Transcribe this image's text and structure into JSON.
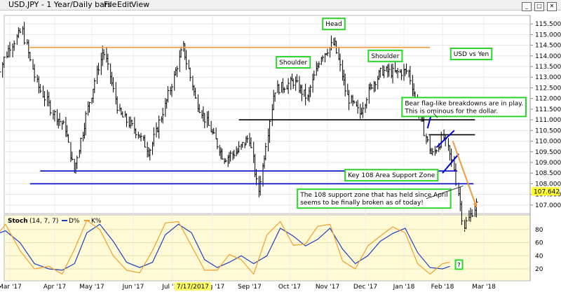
{
  "window": {
    "title": "USD.JPY - 1 Year/Daily bars",
    "menu": [
      "File",
      "Edit",
      "View"
    ]
  },
  "colors": {
    "bars": "#000000",
    "resistance_line": "#f39a3c",
    "support_line": "#0000cc",
    "neckline": "#000000",
    "forecast_arrow": "#f39a3c",
    "label_border": "#2bd62b",
    "stoch_panel_bg": "#fffbd6",
    "d_line": "#1f3fbf",
    "k_line": "#f0a030",
    "last_price_bg": "#ffff33"
  },
  "chart_data": [
    {
      "type": "ohlc",
      "title": "",
      "label_box": "USD vs Yen",
      "ylim": [
        106.6,
        115.9
      ],
      "yticks": [
        107.0,
        107.5,
        108.0,
        108.5,
        109.0,
        109.5,
        110.0,
        110.5,
        111.0,
        111.5,
        112.0,
        112.5,
        113.0,
        113.5,
        114.0,
        114.5,
        115.0,
        115.5
      ],
      "ytick_labels": [
        "107.000",
        "107.500",
        "108.000",
        "108.500",
        "109.000",
        "109.500",
        "110.000",
        "110.500",
        "111.000",
        "111.500",
        "112.000",
        "112.500",
        "113.000",
        "113.500",
        "114.000",
        "114.500",
        "115.000",
        "115.500"
      ],
      "last_price": "107.642",
      "xtick_labels": [
        "Mar '17",
        "Apr '17",
        "May '17",
        "Jun '17",
        "Jul '17",
        "Aug '17",
        "Sep '17",
        "Oct '17",
        "Nov '17",
        "Dec '17",
        "Jan '18",
        "Feb '18",
        "Mar '18"
      ],
      "date_marker": "7/17/2017",
      "close_path": [
        {
          "date": "2017-02-20",
          "close": 113.0
        },
        {
          "date": "2017-03-01",
          "close": 114.4
        },
        {
          "date": "2017-03-10",
          "close": 115.2
        },
        {
          "date": "2017-03-20",
          "close": 112.7
        },
        {
          "date": "2017-03-31",
          "close": 111.4
        },
        {
          "date": "2017-04-10",
          "close": 110.6
        },
        {
          "date": "2017-04-17",
          "close": 108.6
        },
        {
          "date": "2017-04-28",
          "close": 111.5
        },
        {
          "date": "2017-05-10",
          "close": 114.3
        },
        {
          "date": "2017-05-22",
          "close": 111.3
        },
        {
          "date": "2017-06-05",
          "close": 110.4
        },
        {
          "date": "2017-06-14",
          "close": 109.5
        },
        {
          "date": "2017-06-28",
          "close": 112.0
        },
        {
          "date": "2017-07-10",
          "close": 114.4
        },
        {
          "date": "2017-07-20",
          "close": 111.9
        },
        {
          "date": "2017-08-01",
          "close": 110.4
        },
        {
          "date": "2017-08-11",
          "close": 109.2
        },
        {
          "date": "2017-08-22",
          "close": 109.5
        },
        {
          "date": "2017-09-01",
          "close": 110.2
        },
        {
          "date": "2017-09-08",
          "close": 107.6
        },
        {
          "date": "2017-09-20",
          "close": 112.4
        },
        {
          "date": "2017-10-05",
          "close": 112.8
        },
        {
          "date": "2017-10-16",
          "close": 112.0
        },
        {
          "date": "2017-10-27",
          "close": 114.0
        },
        {
          "date": "2017-11-07",
          "close": 114.6
        },
        {
          "date": "2017-11-17",
          "close": 112.1
        },
        {
          "date": "2017-11-27",
          "close": 111.3
        },
        {
          "date": "2017-12-06",
          "close": 112.6
        },
        {
          "date": "2017-12-15",
          "close": 113.3
        },
        {
          "date": "2017-12-26",
          "close": 113.2
        },
        {
          "date": "2018-01-05",
          "close": 113.3
        },
        {
          "date": "2018-01-15",
          "close": 111.0
        },
        {
          "date": "2018-01-24",
          "close": 109.3
        },
        {
          "date": "2018-02-02",
          "close": 110.2
        },
        {
          "date": "2018-02-09",
          "close": 108.8
        },
        {
          "date": "2018-02-16",
          "close": 106.0
        },
        {
          "date": "2018-02-26",
          "close": 107.2
        }
      ],
      "lines": [
        {
          "role": "resistance",
          "from": {
            "date": "2017-03-14",
            "value": 114.4
          },
          "to": {
            "date": "2018-01-22",
            "value": 114.4
          }
        },
        {
          "role": "neckline",
          "from": {
            "date": "2017-08-23",
            "value": 111.0
          },
          "to": {
            "date": "2018-02-23",
            "value": 111.0
          }
        },
        {
          "role": "neckline",
          "from": {
            "date": "2018-01-21",
            "value": 110.3
          },
          "to": {
            "date": "2018-02-23",
            "value": 110.3
          }
        },
        {
          "role": "support",
          "from": {
            "date": "2017-03-22",
            "value": 108.6
          },
          "to": {
            "date": "2018-02-11",
            "value": 108.6
          }
        },
        {
          "role": "support",
          "from": {
            "date": "2017-03-15",
            "value": 108.0
          },
          "to": {
            "date": "2018-02-22",
            "value": 108.0
          }
        }
      ],
      "flags": [
        {
          "from": {
            "date": "2018-01-20",
            "value": 110.6
          },
          "to": {
            "date": "2018-01-25",
            "value": 111.7
          }
        },
        {
          "from": {
            "date": "2018-01-27",
            "value": 109.7
          },
          "to": {
            "date": "2018-02-09",
            "value": 110.5
          }
        },
        {
          "from": {
            "date": "2018-02-01",
            "value": 108.5
          },
          "to": {
            "date": "2018-02-12",
            "value": 109.4
          }
        }
      ],
      "forecast_arrow": {
        "from": {
          "date": "2018-02-08",
          "value": 110.0
        },
        "to": {
          "date": "2018-02-24",
          "value": 106.9
        }
      },
      "annotations": [
        {
          "text": "Head",
          "anchor": {
            "date": "2017-11-06",
            "value": 115.5
          }
        },
        {
          "text": "Shoulder",
          "anchor": {
            "date": "2017-10-04",
            "value": 113.7
          }
        },
        {
          "text": "Shoulder",
          "anchor": {
            "date": "2017-12-17",
            "value": 114.0
          }
        },
        {
          "text": "Key 108 Area Support Zone",
          "anchor": {
            "date": "2017-12-22",
            "value": 108.4
          }
        },
        {
          "lines": [
            "Bear flag-like breakdowns are in play.",
            "This is ominous for the dollar."
          ],
          "anchor": {
            "date": "2018-01-27",
            "value": 111.6
          }
        },
        {
          "lines": [
            "The 108 support zone that has held since April",
            "seems to be finally broken as of today!"
          ],
          "anchor": {
            "date": "2017-12-08",
            "value": 107.3
          }
        }
      ]
    },
    {
      "type": "line",
      "title": "Stoch",
      "params": "(14, 7, 7)",
      "legend": [
        {
          "name": "D%",
          "color": "#1f3fbf"
        },
        {
          "name": "K%",
          "color": "#f0a030"
        }
      ],
      "ylim": [
        4,
        100
      ],
      "yticks": [
        20,
        40,
        60,
        80
      ],
      "marker_label": "?",
      "marker_date": "2018-02-06",
      "series": [
        {
          "name": "D%",
          "points": [
            {
              "date": "2017-02-16",
              "value": 70
            },
            {
              "date": "2017-02-26",
              "value": 78
            },
            {
              "date": "2017-03-08",
              "value": 60
            },
            {
              "date": "2017-03-18",
              "value": 28
            },
            {
              "date": "2017-03-28",
              "value": 20
            },
            {
              "date": "2017-04-07",
              "value": 18
            },
            {
              "date": "2017-04-17",
              "value": 28
            },
            {
              "date": "2017-04-27",
              "value": 75
            },
            {
              "date": "2017-05-07",
              "value": 88
            },
            {
              "date": "2017-05-17",
              "value": 62
            },
            {
              "date": "2017-05-27",
              "value": 30
            },
            {
              "date": "2017-06-06",
              "value": 22
            },
            {
              "date": "2017-06-16",
              "value": 30
            },
            {
              "date": "2017-06-26",
              "value": 72
            },
            {
              "date": "2017-07-06",
              "value": 88
            },
            {
              "date": "2017-07-16",
              "value": 75
            },
            {
              "date": "2017-07-26",
              "value": 34
            },
            {
              "date": "2017-08-05",
              "value": 22
            },
            {
              "date": "2017-08-15",
              "value": 30
            },
            {
              "date": "2017-08-25",
              "value": 40
            },
            {
              "date": "2017-09-04",
              "value": 28
            },
            {
              "date": "2017-09-14",
              "value": 40
            },
            {
              "date": "2017-09-24",
              "value": 82
            },
            {
              "date": "2017-10-04",
              "value": 70
            },
            {
              "date": "2017-10-14",
              "value": 55
            },
            {
              "date": "2017-10-24",
              "value": 65
            },
            {
              "date": "2017-11-03",
              "value": 82
            },
            {
              "date": "2017-11-13",
              "value": 50
            },
            {
              "date": "2017-11-23",
              "value": 28
            },
            {
              "date": "2017-12-03",
              "value": 40
            },
            {
              "date": "2017-12-13",
              "value": 62
            },
            {
              "date": "2017-12-23",
              "value": 74
            },
            {
              "date": "2018-01-02",
              "value": 82
            },
            {
              "date": "2018-01-12",
              "value": 45
            },
            {
              "date": "2018-01-22",
              "value": 22
            },
            {
              "date": "2018-02-01",
              "value": 20
            },
            {
              "date": "2018-02-06",
              "value": 24
            }
          ]
        },
        {
          "name": "K%",
          "points": [
            {
              "date": "2017-02-16",
              "value": 60
            },
            {
              "date": "2017-02-26",
              "value": 88
            },
            {
              "date": "2017-03-08",
              "value": 48
            },
            {
              "date": "2017-03-18",
              "value": 20
            },
            {
              "date": "2017-03-28",
              "value": 24
            },
            {
              "date": "2017-04-07",
              "value": 12
            },
            {
              "date": "2017-04-17",
              "value": 50
            },
            {
              "date": "2017-04-27",
              "value": 94
            },
            {
              "date": "2017-05-07",
              "value": 80
            },
            {
              "date": "2017-05-17",
              "value": 40
            },
            {
              "date": "2017-05-27",
              "value": 18
            },
            {
              "date": "2017-06-06",
              "value": 14
            },
            {
              "date": "2017-06-16",
              "value": 48
            },
            {
              "date": "2017-06-26",
              "value": 90
            },
            {
              "date": "2017-07-06",
              "value": 92
            },
            {
              "date": "2017-07-16",
              "value": 55
            },
            {
              "date": "2017-07-26",
              "value": 18
            },
            {
              "date": "2017-08-05",
              "value": 18
            },
            {
              "date": "2017-08-15",
              "value": 42
            },
            {
              "date": "2017-08-25",
              "value": 34
            },
            {
              "date": "2017-09-04",
              "value": 12
            },
            {
              "date": "2017-09-14",
              "value": 72
            },
            {
              "date": "2017-09-24",
              "value": 92
            },
            {
              "date": "2017-10-04",
              "value": 56
            },
            {
              "date": "2017-10-14",
              "value": 58
            },
            {
              "date": "2017-10-24",
              "value": 85
            },
            {
              "date": "2017-11-03",
              "value": 88
            },
            {
              "date": "2017-11-13",
              "value": 32
            },
            {
              "date": "2017-11-23",
              "value": 20
            },
            {
              "date": "2017-12-03",
              "value": 55
            },
            {
              "date": "2017-12-13",
              "value": 70
            },
            {
              "date": "2017-12-23",
              "value": 84
            },
            {
              "date": "2018-01-02",
              "value": 75
            },
            {
              "date": "2018-01-12",
              "value": 28
            },
            {
              "date": "2018-01-22",
              "value": 12
            },
            {
              "date": "2018-02-01",
              "value": 28
            },
            {
              "date": "2018-02-06",
              "value": 30
            }
          ]
        }
      ]
    }
  ]
}
